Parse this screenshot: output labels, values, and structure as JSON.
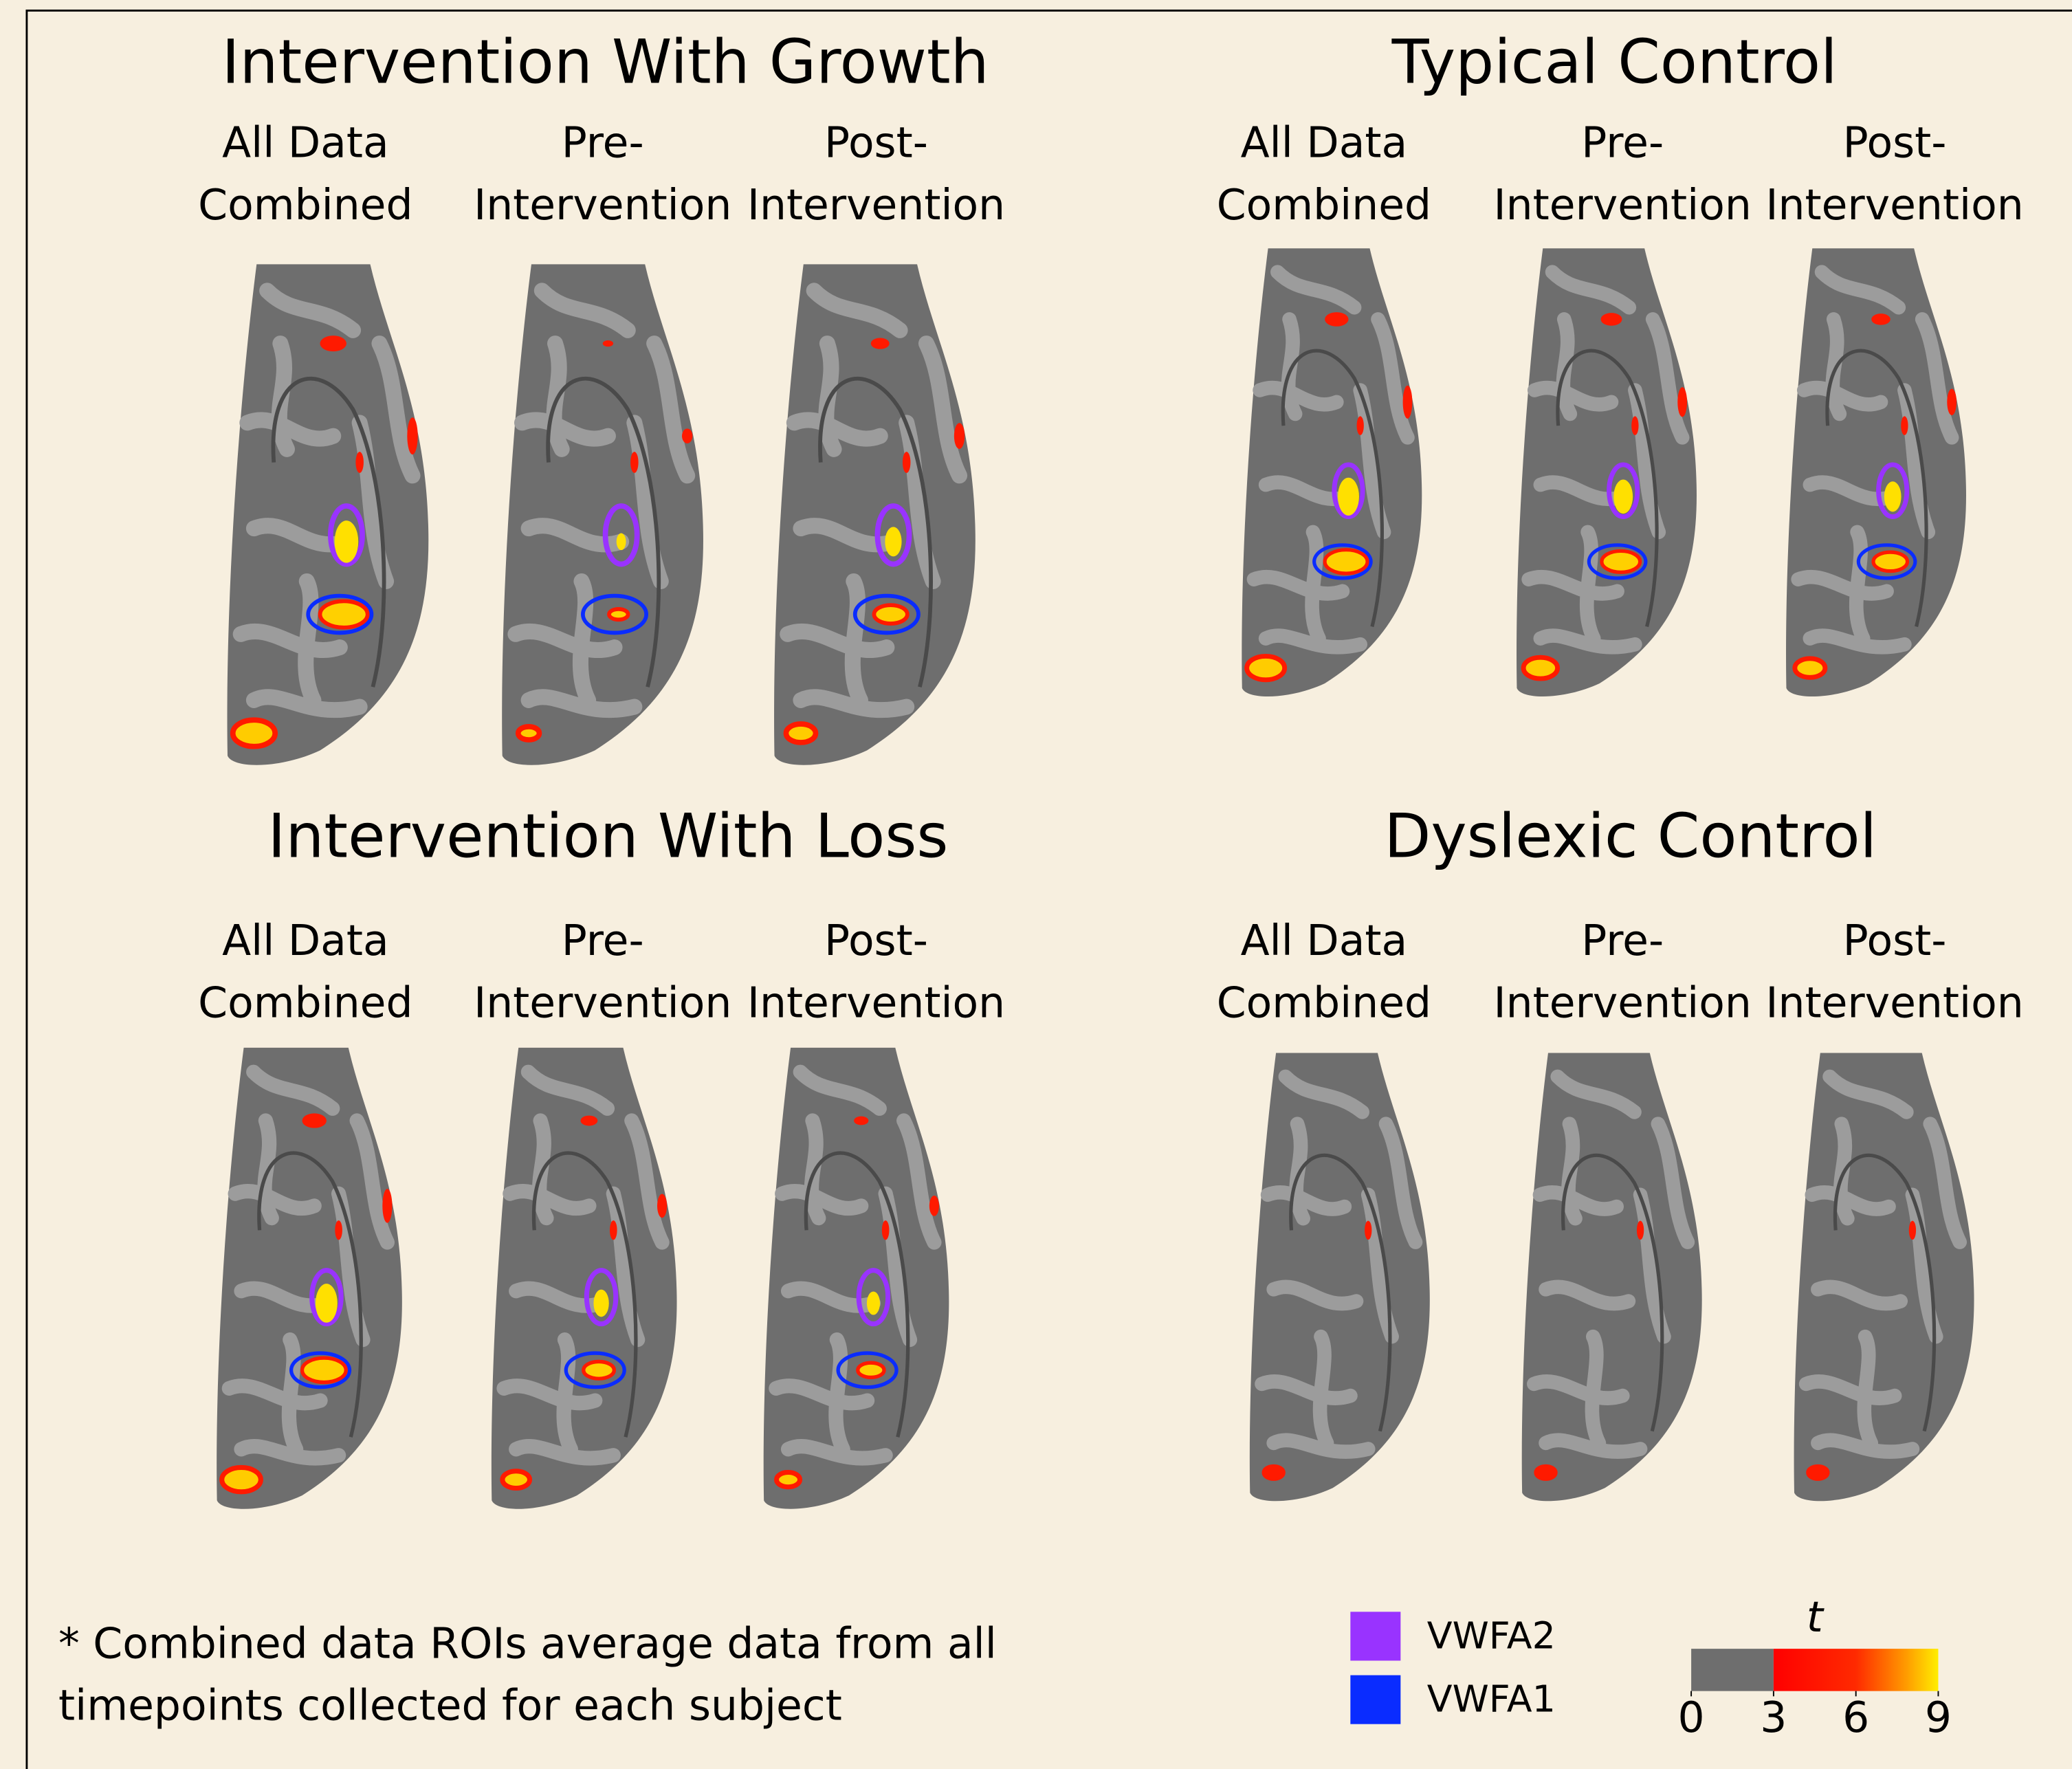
{
  "panels": [
    {
      "title": "Intervention With Growth",
      "columns": [
        [
          "All Data",
          "Combined"
        ],
        [
          "Pre-",
          "Intervention"
        ],
        [
          "Post-",
          "Intervention"
        ]
      ]
    },
    {
      "title": "Typical Control",
      "columns": [
        [
          "All Data",
          "Combined"
        ],
        [
          "Pre-",
          "Intervention"
        ],
        [
          "Post-",
          "Intervention"
        ]
      ]
    },
    {
      "title": "Intervention With Loss",
      "columns": [
        [
          "All Data",
          "Combined"
        ],
        [
          "Pre-",
          "Intervention"
        ],
        [
          "Post-",
          "Intervention"
        ]
      ]
    },
    {
      "title": "Dyslexic Control",
      "columns": [
        [
          "All Data",
          "Combined"
        ],
        [
          "Pre-",
          "Intervention"
        ],
        [
          "Post-",
          "Intervention"
        ]
      ]
    }
  ],
  "footnote": [
    "* Combined data ROIs average data from all",
    "timepoints collected for each subject"
  ],
  "legend": [
    {
      "label": "VWFA2",
      "color": "#9933ff"
    },
    {
      "label": "VWFA1",
      "color": "#0a2cff"
    }
  ],
  "colorbar": {
    "label": "t",
    "lim": [
      0,
      9
    ],
    "ticks": [
      0,
      3,
      6,
      9
    ],
    "threshold": 3
  }
}
